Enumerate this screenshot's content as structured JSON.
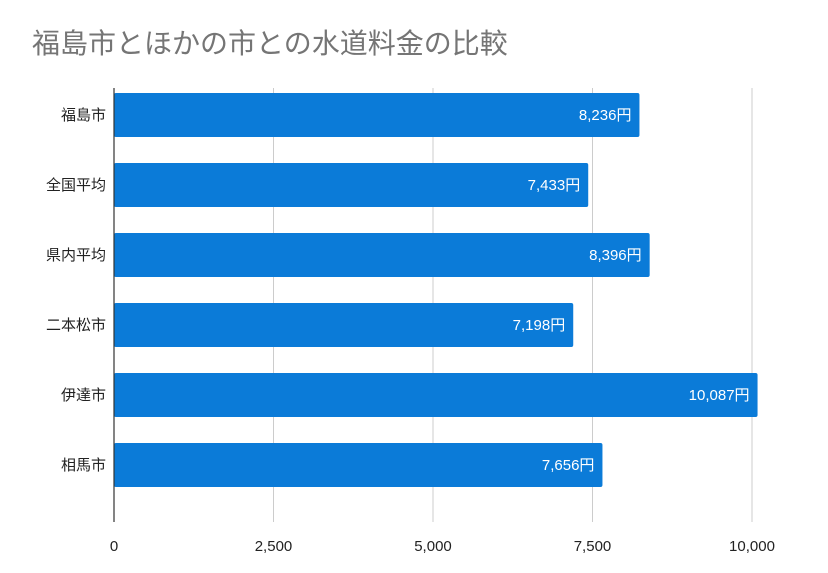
{
  "chart_data": {
    "type": "bar",
    "orientation": "horizontal",
    "title": "福島市とほかの市との水道料金の比較",
    "categories": [
      "福島市",
      "全国平均",
      "県内平均",
      "二本松市",
      "伊達市",
      "相馬市"
    ],
    "values": [
      8236,
      7433,
      8396,
      7198,
      10087,
      7656
    ],
    "data_labels": [
      "8,236円",
      "7,433円",
      "8,396円",
      "7,198円",
      "10,087円",
      "7,656円"
    ],
    "xlim": [
      0,
      10000
    ],
    "x_ticks": [
      0,
      2500,
      5000,
      7500,
      10000
    ],
    "x_tick_labels": [
      "0",
      "2,500",
      "5,000",
      "7,500",
      "10,000"
    ],
    "grid": true,
    "legend": "none",
    "bar_color": "#0b7bd8",
    "title_color": "#757575",
    "grid_color": "#cccccc"
  }
}
